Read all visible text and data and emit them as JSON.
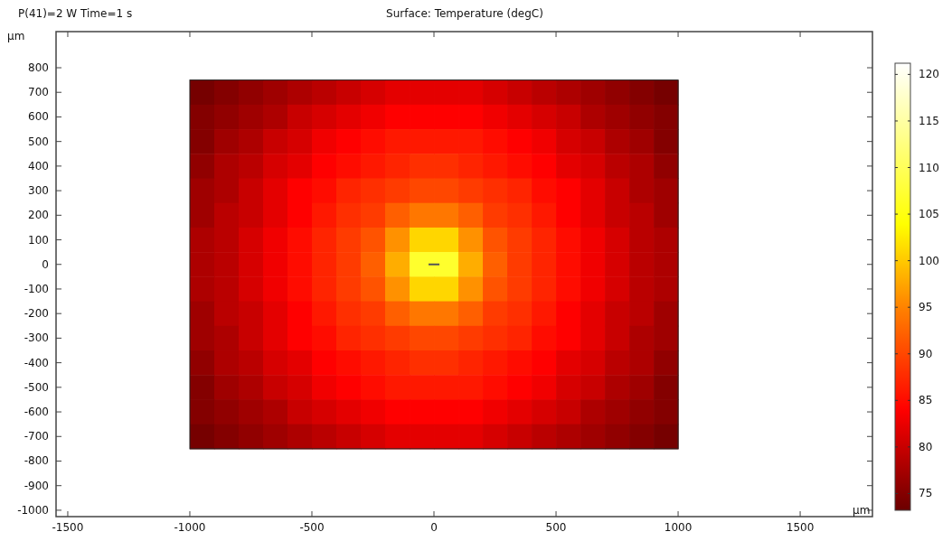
{
  "chart_data": {
    "type": "heatmap",
    "title": "Surface: Temperature (degC)",
    "subtitle": "P(41)=2 W Time=1 s",
    "xlabel": "µm",
    "ylabel": "µm",
    "x": [
      -950,
      -850,
      -750,
      -650,
      -550,
      -450,
      -350,
      -250,
      -150,
      -50,
      50,
      150,
      250,
      350,
      450,
      550,
      650,
      750,
      850,
      950
    ],
    "y": [
      700,
      600,
      500,
      400,
      300,
      200,
      100,
      0,
      -100,
      -200,
      -300,
      -400,
      -500,
      -600,
      -700
    ],
    "cells": [
      [
        74,
        75,
        76,
        77,
        78,
        79,
        80,
        81,
        82,
        82,
        82,
        82,
        81,
        80,
        79,
        78,
        77,
        76,
        75,
        74
      ],
      [
        75,
        76,
        77,
        78,
        80,
        81,
        82,
        83,
        84,
        84,
        84,
        84,
        83,
        82,
        81,
        80,
        78,
        77,
        76,
        75
      ],
      [
        75,
        77,
        78,
        80,
        81,
        83,
        84,
        85,
        86,
        86,
        86,
        86,
        85,
        84,
        83,
        81,
        80,
        78,
        77,
        75
      ],
      [
        76,
        78,
        79,
        81,
        82,
        84,
        85,
        86,
        87,
        88,
        88,
        87,
        86,
        85,
        84,
        82,
        81,
        79,
        78,
        76
      ],
      [
        77,
        78,
        80,
        82,
        84,
        85,
        87,
        88,
        89,
        90,
        90,
        89,
        88,
        87,
        85,
        84,
        82,
        80,
        78,
        77
      ],
      [
        77,
        79,
        80,
        82,
        84,
        86,
        88,
        89,
        92,
        94,
        94,
        92,
        89,
        88,
        86,
        84,
        82,
        80,
        79,
        77
      ],
      [
        78,
        79,
        81,
        83,
        85,
        87,
        89,
        91,
        96,
        101,
        101,
        96,
        91,
        89,
        87,
        85,
        83,
        81,
        79,
        78
      ],
      [
        78,
        79,
        81,
        83,
        85,
        87,
        89,
        92,
        98,
        107,
        107,
        98,
        92,
        89,
        87,
        85,
        83,
        81,
        79,
        78
      ],
      [
        78,
        79,
        81,
        83,
        85,
        87,
        89,
        91,
        96,
        101,
        101,
        96,
        91,
        89,
        87,
        85,
        83,
        81,
        79,
        78
      ],
      [
        77,
        79,
        80,
        82,
        84,
        86,
        88,
        89,
        92,
        94,
        94,
        92,
        89,
        88,
        86,
        84,
        82,
        80,
        79,
        77
      ],
      [
        77,
        78,
        80,
        82,
        84,
        85,
        87,
        88,
        89,
        90,
        90,
        89,
        88,
        87,
        85,
        84,
        82,
        80,
        78,
        77
      ],
      [
        76,
        78,
        79,
        81,
        82,
        84,
        85,
        86,
        87,
        88,
        88,
        87,
        86,
        85,
        84,
        82,
        81,
        79,
        78,
        76
      ],
      [
        75,
        77,
        78,
        80,
        81,
        83,
        84,
        85,
        86,
        86,
        86,
        86,
        85,
        84,
        83,
        81,
        80,
        78,
        77,
        75
      ],
      [
        75,
        76,
        77,
        78,
        80,
        81,
        82,
        83,
        84,
        84,
        84,
        84,
        83,
        82,
        81,
        80,
        78,
        77,
        76,
        75
      ],
      [
        74,
        75,
        76,
        77,
        78,
        79,
        80,
        81,
        82,
        82,
        82,
        82,
        81,
        80,
        79,
        78,
        77,
        76,
        75,
        74
      ]
    ],
    "xlim": [
      -1548,
      1796
    ],
    "ylim": [
      -1026,
      947
    ],
    "xticks": [
      -1500,
      -1000,
      -500,
      0,
      500,
      1000,
      1500
    ],
    "yticks": [
      -1000,
      -900,
      -800,
      -700,
      -600,
      -500,
      -400,
      -300,
      -200,
      -100,
      0,
      100,
      200,
      300,
      400,
      500,
      600,
      700,
      800
    ],
    "clim": [
      73.2,
      121.2
    ],
    "cticks": [
      75,
      80,
      85,
      90,
      95,
      100,
      105,
      110,
      115,
      120
    ],
    "grid": false
  }
}
